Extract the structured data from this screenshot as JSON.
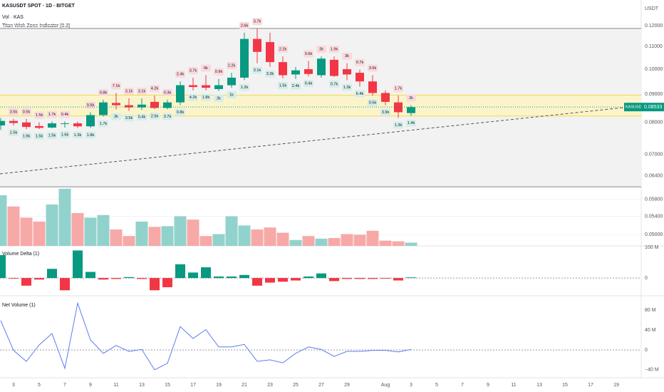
{
  "chart_data": [
    {
      "type": "candlestick",
      "title": "KASUSDT SPOT · 1D · BITGET",
      "subtitles": [
        "Vol · KAS",
        "Titan Wick Zone Indicator (0.3)"
      ],
      "axis_unit": "USDT",
      "open": [
        0.079,
        0.0805,
        0.08,
        0.0788,
        0.0783,
        0.0796,
        0.0797,
        0.0787,
        0.0825,
        0.0868,
        0.086,
        0.0852,
        0.0872,
        0.085,
        0.087,
        0.0935,
        0.0935,
        0.092,
        0.0935,
        0.0965,
        0.1135,
        0.112,
        0.103,
        0.0978,
        0.1,
        0.0975,
        0.104,
        0.1,
        0.0985,
        0.095,
        0.0905,
        0.087,
        0.0832
      ],
      "high": [
        0.0815,
        0.0812,
        0.0812,
        0.08,
        0.0803,
        0.0803,
        0.0803,
        0.0835,
        0.088,
        0.0905,
        0.0885,
        0.0885,
        0.0895,
        0.088,
        0.095,
        0.0965,
        0.0975,
        0.096,
        0.0985,
        0.1165,
        0.1185,
        0.1165,
        0.1055,
        0.101,
        0.1035,
        0.1055,
        0.1055,
        0.1025,
        0.0998,
        0.0975,
        0.0915,
        0.0895,
        0.086
      ],
      "low": [
        0.0775,
        0.079,
        0.0778,
        0.0778,
        0.078,
        0.0783,
        0.0782,
        0.0782,
        0.082,
        0.0845,
        0.084,
        0.0843,
        0.0846,
        0.0845,
        0.086,
        0.0915,
        0.0915,
        0.0912,
        0.0925,
        0.0955,
        0.1025,
        0.101,
        0.0962,
        0.096,
        0.097,
        0.0965,
        0.0968,
        0.0955,
        0.093,
        0.0895,
        0.086,
        0.0815,
        0.0822
      ],
      "close": [
        0.0805,
        0.0798,
        0.0785,
        0.0782,
        0.0797,
        0.0797,
        0.0787,
        0.0825,
        0.087,
        0.086,
        0.0852,
        0.0862,
        0.085,
        0.087,
        0.0935,
        0.0928,
        0.0925,
        0.0935,
        0.0965,
        0.1135,
        0.1075,
        0.103,
        0.0975,
        0.0995,
        0.098,
        0.1045,
        0.0972,
        0.0978,
        0.095,
        0.0905,
        0.0872,
        0.0835,
        0.0853
      ],
      "upper_labels": [
        null,
        "3.5k",
        "0.5k",
        "1.5k",
        "1.7k",
        "0.4k",
        null,
        "0.5k",
        "0.8k",
        "7.1k",
        "3.1k",
        "3.1k",
        "4.2k",
        "0.3k",
        "2.4k",
        "3.7k",
        "6k",
        "0.9k",
        "2.2k",
        "2.6k",
        "3.7k",
        null,
        "2.2k",
        null,
        "0.6k",
        "2k",
        "1.9k",
        "3k",
        "0.7k",
        "3.5k",
        null,
        "1.7k",
        "2k"
      ],
      "lower_labels": [
        null,
        "1.5k",
        "1.9k",
        "1.5k",
        "1.5k",
        "1.6k",
        "1.3k",
        "1.8k",
        "1.7k",
        "2k",
        "3.5k",
        "0.4k",
        "2.5k",
        "3.7k",
        "0.8k",
        "4.2k",
        "1.8k",
        "2k",
        "1k",
        "1.2k",
        "3.1k",
        "3.3k",
        "1.5k",
        "2.4k",
        "0.4k",
        null,
        "0.7k",
        "1.3k",
        "6.4k",
        "0.5k",
        "3.9k",
        "1.3k",
        "1.4k"
      ],
      "up_color": "#089981",
      "down_color": "#f23645",
      "log": true,
      "ylim": [
        0.0477,
        0.1336
      ],
      "yticks": [
        {
          "value": 0.12,
          "label": "0.12000"
        },
        {
          "value": 0.11,
          "label": "0.11000"
        },
        {
          "value": 0.1,
          "label": "0.10000"
        },
        {
          "value": 0.09,
          "label": "0.09000"
        },
        {
          "value": 0.08,
          "label": "0.08000"
        },
        {
          "value": 0.07,
          "label": "0.07000"
        },
        {
          "value": 0.064,
          "label": "0.06400"
        },
        {
          "value": 0.058,
          "label": "0.05800"
        },
        {
          "value": 0.054,
          "label": "0.05400"
        },
        {
          "value": 0.05,
          "label": "0.05000"
        }
      ],
      "zone": [
        0.0822,
        0.0897
      ],
      "range_zone": [
        0.0611,
        0.1186
      ],
      "trendline": [
        0.0645,
        0.0858
      ],
      "last_price": {
        "symbol": "KASUSDT",
        "value": 0.08533,
        "label": "0.08533"
      }
    },
    {
      "type": "volume",
      "values": [
        77,
        60,
        43,
        37,
        63,
        87,
        50,
        43,
        47,
        25,
        15,
        37,
        29,
        30,
        45,
        40,
        15,
        18,
        45,
        31,
        25,
        28,
        20,
        9,
        15,
        11,
        12,
        18,
        17,
        23,
        8,
        7,
        5
      ],
      "ylim": [
        0,
        90
      ],
      "up_color": "#92d2cc",
      "down_color": "#f7a9a7"
    },
    {
      "type": "bar",
      "title": "Volume Delta (1)",
      "values": [
        75,
        -2,
        -25,
        -5,
        30,
        -40,
        90,
        20,
        -5,
        -3,
        3,
        -3,
        -40,
        -30,
        45,
        18,
        35,
        5,
        5,
        10,
        -25,
        -15,
        -12,
        -8,
        5,
        15,
        -10,
        -3,
        -3,
        -3,
        -2,
        -8,
        2
      ],
      "ylim": [
        -58,
        105
      ],
      "yticks": [
        {
          "value": 100,
          "label": "100 M"
        },
        0
      ],
      "up_color": "#089981",
      "down_color": "#f23645"
    },
    {
      "type": "line",
      "title": "Net Volume (1)",
      "values": [
        59,
        -1,
        -23,
        10,
        33,
        -37,
        94,
        20,
        -7,
        9,
        -3,
        1,
        -40,
        -27,
        47,
        23,
        41,
        6,
        6,
        11,
        -23,
        -20,
        -26,
        -7,
        6,
        1,
        -13,
        -3,
        -3,
        -1,
        -1,
        -4,
        1
      ],
      "ylim": [
        -56,
        109
      ],
      "yticks": [
        {
          "value": 80,
          "label": "80 M"
        },
        {
          "value": 40,
          "label": "40 M"
        },
        0,
        {
          "value": -40,
          "label": "−40 M"
        }
      ],
      "color": "#5b7cf0",
      "xlim": [
        0,
        50
      ],
      "xticks": [
        {
          "value": 1,
          "label": "3"
        },
        {
          "value": 3,
          "label": "5"
        },
        {
          "value": 5,
          "label": "7"
        },
        {
          "value": 7,
          "label": "9"
        },
        {
          "value": 9,
          "label": "11"
        },
        {
          "value": 11,
          "label": "13"
        },
        {
          "value": 13,
          "label": "15"
        },
        {
          "value": 15,
          "label": "17"
        },
        {
          "value": 17,
          "label": "19"
        },
        {
          "value": 19,
          "label": "21"
        },
        {
          "value": 21,
          "label": "23"
        },
        {
          "value": 23,
          "label": "25"
        },
        {
          "value": 25,
          "label": "27"
        },
        {
          "value": 27,
          "label": "29"
        },
        {
          "value": 30,
          "label": "Aug"
        },
        {
          "value": 32,
          "label": "3"
        },
        {
          "value": 34,
          "label": "5"
        },
        {
          "value": 36,
          "label": "7"
        },
        {
          "value": 38,
          "label": "9"
        },
        {
          "value": 40,
          "label": "11"
        },
        {
          "value": 42,
          "label": "13"
        },
        {
          "value": 44,
          "label": "15"
        },
        {
          "value": 46,
          "label": "17"
        },
        {
          "value": 48,
          "label": "19"
        }
      ]
    }
  ]
}
